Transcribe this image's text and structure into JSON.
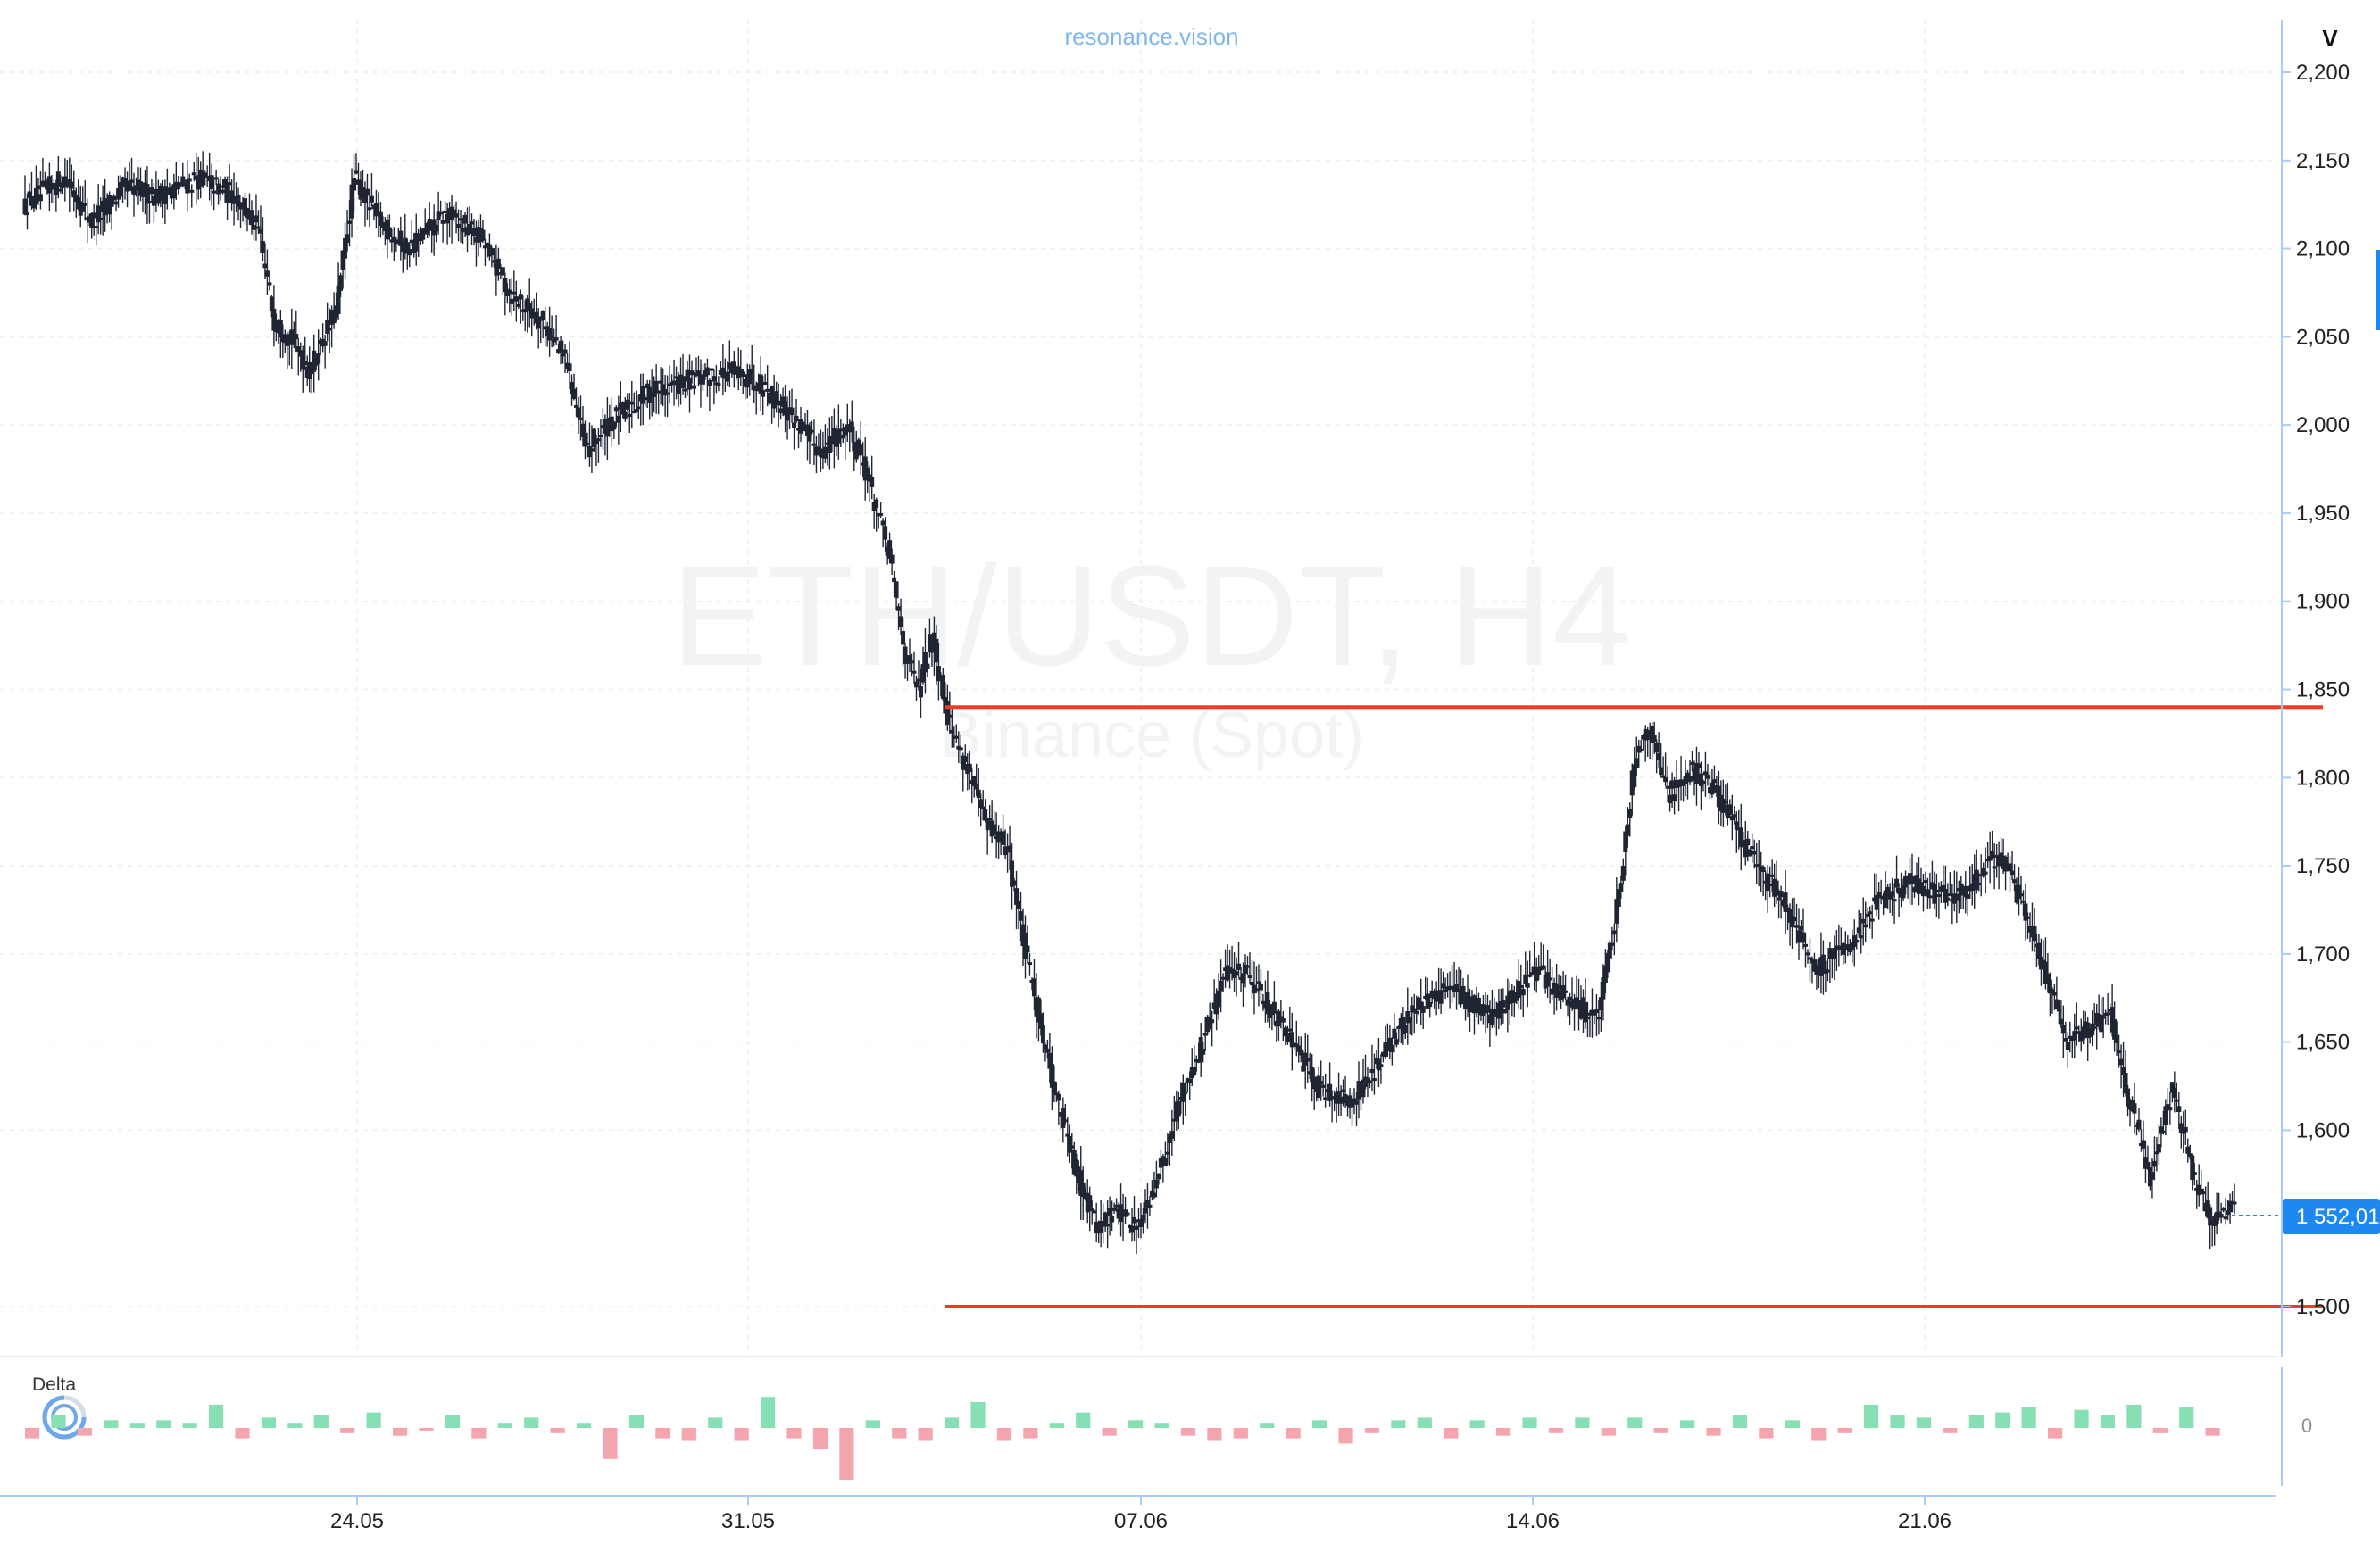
{
  "brand": "resonance.vision",
  "watermark": {
    "symbol": "ETH/USDT, H4",
    "exchange": "Binance (Spot)"
  },
  "axis_label": "V",
  "delta_label": "Delta",
  "delta_zero_label": "0",
  "last_price_label": "1 552,01",
  "colors": {
    "candle": "#1f2533",
    "level_line": "#f23b24",
    "delta_pos": "#86e0b4",
    "delta_neg": "#f4a5ad",
    "axis": "#a9cdf2",
    "price_tag": "#1e88f0",
    "grid": "#eceef2"
  },
  "chart_data": {
    "type": "candlestick",
    "title": "",
    "xlabel": "",
    "ylabel": "",
    "ylim": [
      1490,
      2220
    ],
    "y_ticks": [
      "2,200",
      "2,150",
      "2,100",
      "2,050",
      "2,000",
      "1,950",
      "1,900",
      "1,850",
      "1,800",
      "1,750",
      "1,700",
      "1,650",
      "1,600",
      "1,500"
    ],
    "x_ticks": [
      "24.05",
      "31.05",
      "07.06",
      "14.06",
      "21.06"
    ],
    "horizontal_levels": [
      1840,
      1500
    ],
    "last_price": 1552.01,
    "price_path": [
      [
        0,
        2125
      ],
      [
        18,
        2140
      ],
      [
        30,
        2115
      ],
      [
        45,
        2135
      ],
      [
        60,
        2130
      ],
      [
        78,
        2140
      ],
      [
        95,
        2130
      ],
      [
        105,
        2110
      ],
      [
        112,
        2060
      ],
      [
        122,
        2045
      ],
      [
        128,
        2030
      ],
      [
        140,
        2065
      ],
      [
        148,
        2140
      ],
      [
        160,
        2115
      ],
      [
        172,
        2100
      ],
      [
        190,
        2120
      ],
      [
        206,
        2105
      ],
      [
        218,
        2075
      ],
      [
        232,
        2060
      ],
      [
        244,
        2035
      ],
      [
        252,
        1985
      ],
      [
        262,
        2000
      ],
      [
        282,
        2020
      ],
      [
        300,
        2025
      ],
      [
        318,
        2030
      ],
      [
        330,
        2025
      ],
      [
        345,
        2005
      ],
      [
        358,
        1985
      ],
      [
        370,
        2000
      ],
      [
        378,
        1975
      ],
      [
        388,
        1930
      ],
      [
        396,
        1870
      ],
      [
        402,
        1850
      ],
      [
        408,
        1880
      ],
      [
        416,
        1830
      ],
      [
        424,
        1805
      ],
      [
        432,
        1775
      ],
      [
        442,
        1760
      ],
      [
        450,
        1700
      ],
      [
        462,
        1630
      ],
      [
        472,
        1580
      ],
      [
        482,
        1545
      ],
      [
        492,
        1555
      ],
      [
        500,
        1545
      ],
      [
        510,
        1575
      ],
      [
        520,
        1620
      ],
      [
        530,
        1650
      ],
      [
        540,
        1690
      ],
      [
        550,
        1690
      ],
      [
        560,
        1670
      ],
      [
        572,
        1645
      ],
      [
        582,
        1625
      ],
      [
        596,
        1615
      ],
      [
        610,
        1640
      ],
      [
        625,
        1670
      ],
      [
        640,
        1680
      ],
      [
        660,
        1665
      ],
      [
        680,
        1690
      ],
      [
        698,
        1670
      ],
      [
        708,
        1665
      ],
      [
        716,
        1725
      ],
      [
        724,
        1810
      ],
      [
        730,
        1830
      ],
      [
        740,
        1790
      ],
      [
        750,
        1805
      ],
      [
        762,
        1790
      ],
      [
        772,
        1765
      ],
      [
        782,
        1745
      ],
      [
        792,
        1730
      ],
      [
        806,
        1690
      ],
      [
        820,
        1705
      ],
      [
        834,
        1730
      ],
      [
        848,
        1740
      ],
      [
        860,
        1735
      ],
      [
        874,
        1735
      ],
      [
        884,
        1755
      ],
      [
        892,
        1750
      ],
      [
        906,
        1700
      ],
      [
        918,
        1650
      ],
      [
        930,
        1660
      ],
      [
        938,
        1665
      ],
      [
        946,
        1620
      ],
      [
        956,
        1575
      ],
      [
        966,
        1625
      ],
      [
        976,
        1570
      ],
      [
        984,
        1550
      ],
      [
        994,
        1560
      ]
    ],
    "delta_values": [
      -4,
      5,
      -3,
      3,
      2,
      3,
      2,
      9,
      -4,
      4,
      2,
      5,
      -2,
      6,
      -3,
      -1,
      5,
      -4,
      2,
      4,
      -2,
      2,
      -12,
      5,
      -4,
      -5,
      4,
      -5,
      12,
      -4,
      -8,
      -20,
      3,
      -4,
      -5,
      4,
      10,
      -5,
      -4,
      2,
      6,
      -3,
      3,
      2,
      -3,
      -5,
      -4,
      2,
      -4,
      3,
      -6,
      -2,
      3,
      4,
      -4,
      3,
      -3,
      4,
      -2,
      4,
      -3,
      4,
      -2,
      3,
      -3,
      5,
      -4,
      3,
      -5,
      -2,
      9,
      5,
      4,
      -2,
      5,
      6,
      8,
      -4,
      7,
      5,
      9,
      -2,
      8,
      -3
    ]
  }
}
